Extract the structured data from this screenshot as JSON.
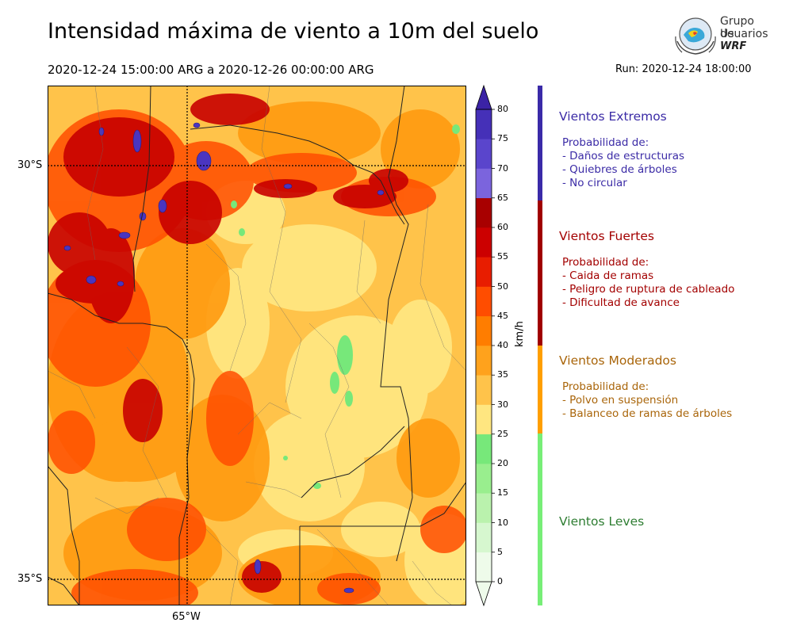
{
  "title": "Intensidad máxima de viento a 10m del suelo",
  "period": "2020-12-24 15:00:00 ARG  a  2020-12-26 00:00:00 ARG",
  "run": "Run: 2020-12-24 18:00:00",
  "logo": {
    "line1": "Grupo de",
    "line2": "Usuarios",
    "line3": "WRF"
  },
  "map": {
    "lat_labels": [
      "30°S",
      "35°S"
    ],
    "lon_labels": [
      "65°W"
    ]
  },
  "colorbar": {
    "unit": "km/h",
    "ticks": [
      "0",
      "5",
      "10",
      "15",
      "20",
      "25",
      "30",
      "35",
      "40",
      "45",
      "50",
      "55",
      "60",
      "65",
      "70",
      "75",
      "80"
    ],
    "colors": [
      "#eefbea",
      "#d6f7cf",
      "#baf2ad",
      "#99ee8e",
      "#77e87a",
      "#ffe680",
      "#ffc34a",
      "#ffa21c",
      "#ff7d00",
      "#ff4d00",
      "#e81d00",
      "#cc0000",
      "#a80000",
      "#7b64dd",
      "#5a45cc",
      "#4530b8",
      "#3b23a6"
    ]
  },
  "categories": [
    {
      "title": "Vientos Extremos",
      "color": "#3b2ba6",
      "subtitle": "Probabilidad de:",
      "items": [
        "- Daños de estructuras",
        "- Quiebres de árboles",
        "- No circular"
      ]
    },
    {
      "title": "Vientos Fuertes",
      "color": "#a30000",
      "subtitle": "Probabilidad de:",
      "items": [
        "- Caida de ramas",
        "- Peligro de ruptura de cableado",
        "- Dificultad de avance"
      ]
    },
    {
      "title": "Vientos Moderados",
      "color": "#a9650a",
      "subtitle": "Probabilidad de:",
      "items": [
        "- Polvo en suspensión",
        "- Balanceo de ramas de árboles"
      ]
    },
    {
      "title": "Vientos Leves",
      "color": "#2e7d32",
      "subtitle": "",
      "items": []
    }
  ],
  "bar_colors": {
    "extremos": "#3a2aa8",
    "fuertes": "#a00000",
    "moderados": "#ff9f00",
    "leves": "#77ee77"
  }
}
